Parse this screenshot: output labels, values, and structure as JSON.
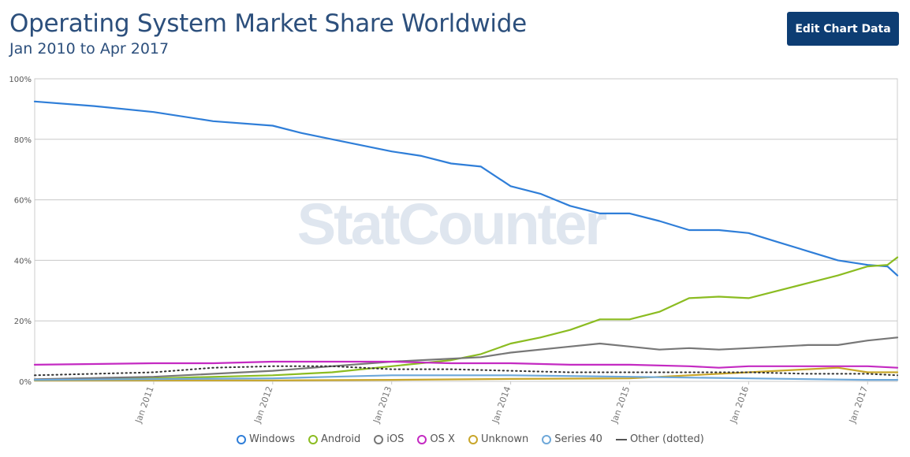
{
  "header": {
    "title": "Operating System Market Share Worldwide",
    "subtitle": "Jan 2010 to Apr 2017",
    "edit_button": "Edit Chart Data"
  },
  "watermark": "StatCounter",
  "chart_data": {
    "type": "line",
    "title": "Operating System Market Share Worldwide",
    "subtitle": "Jan 2010 to Apr 2017",
    "x_start": "2010-01",
    "x_end": "2017-04",
    "ylim": [
      0,
      100
    ],
    "y_ticks": [
      "0%",
      "20%",
      "40%",
      "60%",
      "80%",
      "100%"
    ],
    "y_tick_values": [
      0,
      20,
      40,
      60,
      80,
      100
    ],
    "x_ticks": [
      "Jan 2011",
      "Jan 2012",
      "Jan 2013",
      "Jan 2014",
      "Jan 2015",
      "Jan 2016",
      "Jan 2017"
    ],
    "grid": true,
    "legend_position": "bottom",
    "series": [
      {
        "name": "Windows",
        "color": "#2f7ed8",
        "style": "solid",
        "points": [
          [
            "2010-01",
            92.5
          ],
          [
            "2010-07",
            91
          ],
          [
            "2011-01",
            89
          ],
          [
            "2011-07",
            86
          ],
          [
            "2012-01",
            84.5
          ],
          [
            "2012-04",
            82
          ],
          [
            "2012-07",
            80
          ],
          [
            "2013-01",
            76
          ],
          [
            "2013-04",
            74.5
          ],
          [
            "2013-07",
            72
          ],
          [
            "2013-10",
            71
          ],
          [
            "2014-01",
            64.5
          ],
          [
            "2014-04",
            62
          ],
          [
            "2014-07",
            58
          ],
          [
            "2014-10",
            55.5
          ],
          [
            "2015-01",
            55.5
          ],
          [
            "2015-04",
            53
          ],
          [
            "2015-07",
            50
          ],
          [
            "2015-10",
            50
          ],
          [
            "2016-01",
            49
          ],
          [
            "2016-04",
            46
          ],
          [
            "2016-07",
            43
          ],
          [
            "2016-10",
            40
          ],
          [
            "2017-01",
            38.5
          ],
          [
            "2017-03",
            38
          ],
          [
            "2017-04",
            35
          ]
        ]
      },
      {
        "name": "Android",
        "color": "#8bbc21",
        "style": "solid",
        "points": [
          [
            "2010-01",
            0.3
          ],
          [
            "2011-01",
            1
          ],
          [
            "2012-01",
            2
          ],
          [
            "2012-07",
            3
          ],
          [
            "2013-01",
            5
          ],
          [
            "2013-07",
            7
          ],
          [
            "2013-10",
            9
          ],
          [
            "2014-01",
            12.5
          ],
          [
            "2014-04",
            14.5
          ],
          [
            "2014-07",
            17
          ],
          [
            "2014-10",
            20.5
          ],
          [
            "2015-01",
            20.5
          ],
          [
            "2015-04",
            23
          ],
          [
            "2015-07",
            27.5
          ],
          [
            "2015-10",
            28
          ],
          [
            "2016-01",
            27.5
          ],
          [
            "2016-04",
            30
          ],
          [
            "2016-07",
            32.5
          ],
          [
            "2016-10",
            35
          ],
          [
            "2017-01",
            38
          ],
          [
            "2017-03",
            38.5
          ],
          [
            "2017-04",
            41
          ]
        ]
      },
      {
        "name": "iOS",
        "color": "#777777",
        "style": "solid",
        "points": [
          [
            "2010-01",
            0.7
          ],
          [
            "2011-01",
            1.5
          ],
          [
            "2012-01",
            3.5
          ],
          [
            "2012-07",
            5
          ],
          [
            "2013-01",
            6.5
          ],
          [
            "2013-04",
            7
          ],
          [
            "2013-10",
            8
          ],
          [
            "2014-01",
            9.5
          ],
          [
            "2014-07",
            11.5
          ],
          [
            "2014-10",
            12.5
          ],
          [
            "2015-01",
            11.5
          ],
          [
            "2015-04",
            10.5
          ],
          [
            "2015-07",
            11
          ],
          [
            "2015-10",
            10.5
          ],
          [
            "2016-01",
            11
          ],
          [
            "2016-07",
            12
          ],
          [
            "2016-10",
            12
          ],
          [
            "2017-01",
            13.5
          ],
          [
            "2017-04",
            14.5
          ]
        ]
      },
      {
        "name": "OS X",
        "color": "#c42ac2",
        "style": "solid",
        "points": [
          [
            "2010-01",
            5.5
          ],
          [
            "2011-01",
            6
          ],
          [
            "2011-07",
            6
          ],
          [
            "2012-01",
            6.5
          ],
          [
            "2012-07",
            6.5
          ],
          [
            "2013-01",
            6.5
          ],
          [
            "2013-07",
            6
          ],
          [
            "2014-01",
            6
          ],
          [
            "2014-07",
            5.5
          ],
          [
            "2015-01",
            5.5
          ],
          [
            "2015-07",
            5
          ],
          [
            "2015-10",
            4.5
          ],
          [
            "2016-01",
            5
          ],
          [
            "2016-07",
            5
          ],
          [
            "2017-01",
            5
          ],
          [
            "2017-04",
            4.5
          ]
        ]
      },
      {
        "name": "Unknown",
        "color": "#c8a62a",
        "style": "solid",
        "points": [
          [
            "2010-01",
            0.3
          ],
          [
            "2012-01",
            0.3
          ],
          [
            "2013-01",
            0.5
          ],
          [
            "2014-01",
            0.8
          ],
          [
            "2015-01",
            1
          ],
          [
            "2015-07",
            2
          ],
          [
            "2016-01",
            3
          ],
          [
            "2016-07",
            4
          ],
          [
            "2016-10",
            4.5
          ],
          [
            "2017-01",
            3
          ],
          [
            "2017-04",
            3
          ]
        ]
      },
      {
        "name": "Series 40",
        "color": "#6ea8d9",
        "style": "solid",
        "points": [
          [
            "2010-01",
            0.5
          ],
          [
            "2012-01",
            1
          ],
          [
            "2012-07",
            1.5
          ],
          [
            "2013-01",
            2
          ],
          [
            "2014-01",
            2
          ],
          [
            "2015-01",
            1.5
          ],
          [
            "2016-01",
            1
          ],
          [
            "2017-01",
            0.5
          ],
          [
            "2017-04",
            0.5
          ]
        ]
      },
      {
        "name": "Other (dotted)",
        "color": "#333333",
        "style": "dotted",
        "points": [
          [
            "2010-01",
            2
          ],
          [
            "2010-07",
            2.5
          ],
          [
            "2011-01",
            3
          ],
          [
            "2011-07",
            4.5
          ],
          [
            "2012-01",
            5
          ],
          [
            "2012-07",
            5
          ],
          [
            "2013-01",
            4
          ],
          [
            "2013-07",
            4
          ],
          [
            "2014-01",
            3.5
          ],
          [
            "2014-07",
            3
          ],
          [
            "2015-01",
            3
          ],
          [
            "2016-01",
            3
          ],
          [
            "2016-07",
            2.5
          ],
          [
            "2017-01",
            2.5
          ],
          [
            "2017-04",
            2
          ]
        ]
      }
    ]
  }
}
